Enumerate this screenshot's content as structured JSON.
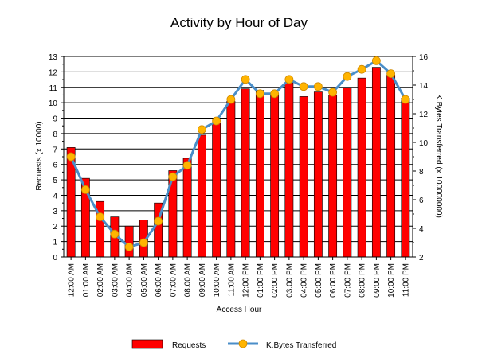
{
  "chart_data": {
    "type": "bar",
    "title": "Activity by Hour of Day",
    "xlabel": "Access Hour",
    "ylabel": "Requests (x 10000)",
    "y2label": "K.Bytes Transferred (x 100000000)",
    "ylim": [
      0,
      13
    ],
    "y2lim": [
      2,
      16
    ],
    "yticks": [
      "0",
      "1",
      "2",
      "3",
      "4",
      "5",
      "6",
      "7",
      "8",
      "9",
      "10",
      "11",
      "12",
      "13"
    ],
    "y2ticks": [
      "2",
      "4",
      "6",
      "8",
      "10",
      "12",
      "14",
      "16"
    ],
    "grid": true,
    "legend_position": "bottom",
    "categories": [
      "12:00 AM",
      "01:00 AM",
      "02:00 AM",
      "03:00 AM",
      "04:00 AM",
      "05:00 AM",
      "06:00 AM",
      "07:00 AM",
      "08:00 AM",
      "09:00 AM",
      "10:00 AM",
      "11:00 AM",
      "12:00 PM",
      "01:00 PM",
      "02:00 PM",
      "03:00 PM",
      "04:00 PM",
      "05:00 PM",
      "06:00 PM",
      "07:00 PM",
      "08:00 PM",
      "09:00 PM",
      "10:00 PM",
      "11:00 PM"
    ],
    "series": [
      {
        "name": "Requests",
        "type": "bar",
        "axis": "left",
        "color": "#ff0000",
        "values": [
          7.1,
          5.1,
          3.6,
          2.6,
          2.0,
          2.4,
          3.5,
          5.6,
          6.4,
          7.9,
          8.7,
          10.1,
          10.9,
          10.8,
          10.6,
          11.3,
          10.4,
          10.7,
          10.5,
          11.0,
          11.6,
          12.3,
          11.8,
          10.3
        ]
      },
      {
        "name": "K.Bytes Transferred",
        "type": "line",
        "axis": "right",
        "color": "#4a8ec8",
        "marker_color": "#ffb400",
        "values": [
          9.0,
          6.7,
          4.8,
          3.6,
          2.7,
          3.0,
          4.5,
          7.6,
          8.4,
          10.9,
          11.5,
          13.0,
          14.4,
          13.4,
          13.4,
          14.4,
          13.9,
          13.9,
          13.5,
          14.6,
          15.1,
          15.7,
          14.8,
          13.0
        ]
      }
    ]
  }
}
